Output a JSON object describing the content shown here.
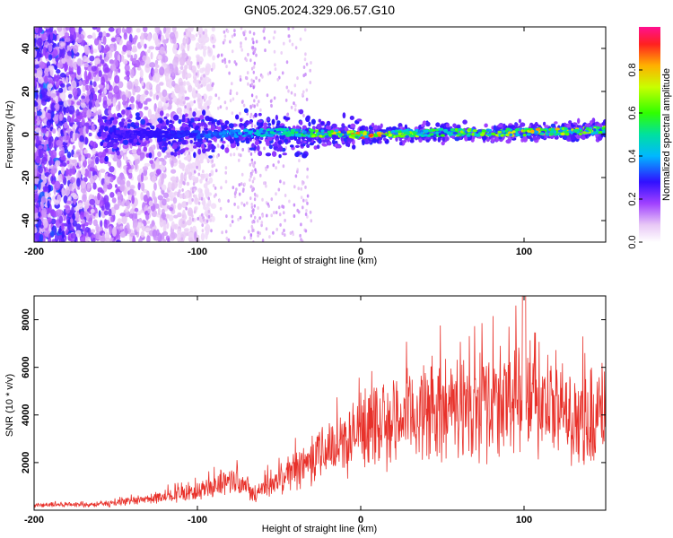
{
  "title": "GN05.2024.329.06.57.G10",
  "chart_data": [
    {
      "type": "heatmap",
      "xlabel": "Height of straight line (km)",
      "ylabel": "Frequency (Hz)",
      "xlim": [
        -200,
        150
      ],
      "ylim": [
        -50,
        50
      ],
      "x_ticks": [
        -200,
        -100,
        0,
        100
      ],
      "y_ticks": [
        -40,
        -20,
        0,
        20,
        40
      ],
      "colorbar": {
        "label": "Normalized spectral amplitude",
        "range": [
          0,
          1
        ],
        "ticks": [
          0.0,
          0.2,
          0.4,
          0.6,
          0.8
        ],
        "tick_labels": [
          "0.0",
          "0.2",
          "0.4",
          "0.6",
          "0.8"
        ]
      },
      "ridge": {
        "description_points_x": [
          -150,
          -100,
          -50,
          0,
          50,
          100,
          150
        ],
        "center_frequency": [
          0,
          0,
          1,
          0,
          1,
          1,
          2
        ],
        "peak_amplitude": [
          0.2,
          0.3,
          0.5,
          0.9,
          0.6,
          0.85,
          0.7
        ]
      }
    },
    {
      "type": "line",
      "xlabel": "Height of straight line (km)",
      "ylabel": "SNR (10 * v/v)",
      "xlim": [
        -200,
        150
      ],
      "ylim": [
        0,
        9000
      ],
      "x_ticks": [
        -200,
        -100,
        0,
        100
      ],
      "y_ticks": [
        2000,
        4000,
        6000,
        8000
      ],
      "series": [
        {
          "color": "#e8312a",
          "x": [
            -200,
            -180,
            -160,
            -140,
            -120,
            -100,
            -90,
            -80,
            -70,
            -65,
            -60,
            -50,
            -40,
            -30,
            -20,
            -10,
            0,
            10,
            20,
            30,
            40,
            50,
            60,
            70,
            80,
            90,
            95,
            100,
            105,
            110,
            120,
            130,
            140,
            150
          ],
          "y": [
            200,
            250,
            250,
            350,
            600,
            800,
            1000,
            1300,
            1200,
            600,
            900,
            1300,
            1700,
            2200,
            2600,
            2900,
            3300,
            3500,
            3800,
            4000,
            4200,
            4200,
            4300,
            4300,
            4400,
            4500,
            5000,
            5500,
            4800,
            4200,
            4100,
            4000,
            3900,
            4100
          ]
        }
      ]
    }
  ]
}
